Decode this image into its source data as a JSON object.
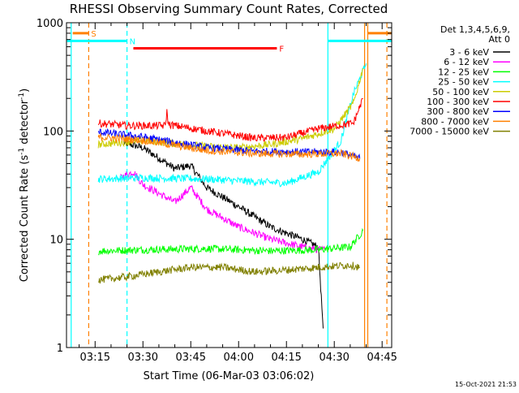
{
  "chart_data": {
    "type": "line",
    "title": "RHESSI Observing Summary Count Rates, Corrected",
    "xlabel": "Start Time (06-Mar-03 03:06:02)",
    "ylabel": "Corrected Count Rate (s",
    "ylabel_sup1": "-1",
    "ylabel_mid": " detector",
    "ylabel_sup2": "-1",
    "ylabel_end": ")",
    "x_unit": "minutes after 03:00",
    "xlim": [
      6.03,
      108
    ],
    "ylim": [
      1,
      1000
    ],
    "y_scale": "log",
    "x_tick_labels": [
      "03:15",
      "03:30",
      "03:45",
      "04:00",
      "04:15",
      "04:30",
      "04:45"
    ],
    "x_ticks": [
      15,
      30,
      45,
      60,
      75,
      90,
      105
    ],
    "y_tick_labels": [
      "1",
      "10",
      "100",
      "1000"
    ],
    "y_ticks": [
      1,
      10,
      100,
      1000
    ],
    "legend": {
      "header1": "Det 1,3,4,5,6,9,",
      "header2": "Att 0",
      "placement": "top-right outside"
    },
    "series": [
      {
        "name": "3 - 6 keV",
        "color": "#000000",
        "x": [
          24,
          30,
          40,
          45,
          50,
          60,
          70,
          80,
          85,
          86.5
        ],
        "y": [
          78,
          70,
          45,
          48,
          30,
          20,
          13,
          10,
          8.5,
          1.5
        ]
      },
      {
        "name": "6 - 12 keV",
        "color": "#ff00ff",
        "x": [
          23,
          27,
          30,
          40,
          45,
          50,
          60,
          70,
          80,
          85,
          87
        ],
        "y": [
          37,
          42,
          32,
          22,
          30,
          19,
          13,
          10,
          8.5,
          8,
          8
        ]
      },
      {
        "name": "12 - 25 keV",
        "color": "#00ff00",
        "x": [
          16,
          30,
          50,
          70,
          85,
          95,
          99
        ],
        "y": [
          7.8,
          8,
          8.2,
          7.8,
          8,
          8.5,
          12
        ]
      },
      {
        "name": "25 - 50 keV",
        "color": "#00ffff",
        "x": [
          16,
          30,
          50,
          65,
          75,
          85,
          92,
          96,
          100
        ],
        "y": [
          36,
          37,
          36,
          34,
          33,
          42,
          80,
          220,
          420
        ]
      },
      {
        "name": "50 - 100 keV",
        "color": "#cccc00",
        "x": [
          16,
          30,
          50,
          60,
          70,
          80,
          90,
          96,
          99
        ],
        "y": [
          75,
          82,
          72,
          70,
          75,
          85,
          105,
          180,
          380
        ]
      },
      {
        "name": "100 - 300 keV",
        "color": "#ff0000",
        "x": [
          16,
          25,
          37,
          37.5,
          38,
          50,
          65,
          75,
          85,
          96,
          99
        ],
        "y": [
          118,
          112,
          112,
          150,
          115,
          100,
          86,
          87,
          105,
          118,
          200
        ]
      },
      {
        "name": "300 - 800 keV",
        "color": "#0000ff",
        "x": [
          16,
          30,
          50,
          65,
          80,
          92,
          98
        ],
        "y": [
          98,
          88,
          70,
          65,
          64,
          64,
          56
        ]
      },
      {
        "name": "800 - 7000 keV",
        "color": "#ff8000",
        "x": [
          16,
          30,
          50,
          65,
          80,
          92,
          98
        ],
        "y": [
          88,
          82,
          66,
          62,
          61,
          62,
          56
        ]
      },
      {
        "name": "7000 - 15000 keV",
        "color": "#808000",
        "x": [
          16,
          25,
          35,
          45,
          55,
          65,
          75,
          85,
          95,
          98
        ],
        "y": [
          4.2,
          4.5,
          5,
          5.5,
          5.5,
          5,
          5.2,
          5.5,
          5.8,
          5.5
        ]
      }
    ],
    "flags": [
      {
        "label": "S",
        "color": "#ff8000",
        "x_start": 8,
        "x_end": 13,
        "y": 800
      },
      {
        "label": "N",
        "color": "#00ffff",
        "x_start": 6.2,
        "x_end": 25,
        "y": 680
      },
      {
        "label": "F",
        "color": "#ff0000",
        "x_start": 27,
        "x_end": 72,
        "y": 580
      },
      {
        "label": "",
        "color": "#00ffff",
        "x_start": 88,
        "x_end": 108,
        "y": 680
      },
      {
        "label": "",
        "color": "#ff8000",
        "x_start": 100.5,
        "x_end": 108,
        "y": 800
      }
    ],
    "vertical_lines": [
      {
        "x": 7.5,
        "color": "#00ffff",
        "style": "solid"
      },
      {
        "x": 13,
        "color": "#ff8000",
        "style": "dashed"
      },
      {
        "x": 25,
        "color": "#00ffff",
        "style": "dashed"
      },
      {
        "x": 88,
        "color": "#00ffff",
        "style": "solid"
      },
      {
        "x": 99.5,
        "color": "#ff8000",
        "style": "solid"
      },
      {
        "x": 100.5,
        "color": "#ff8000",
        "style": "solid"
      },
      {
        "x": 106.5,
        "color": "#ff8000",
        "style": "dashed"
      }
    ],
    "timestamp": "15-Oct-2021 21:53"
  }
}
